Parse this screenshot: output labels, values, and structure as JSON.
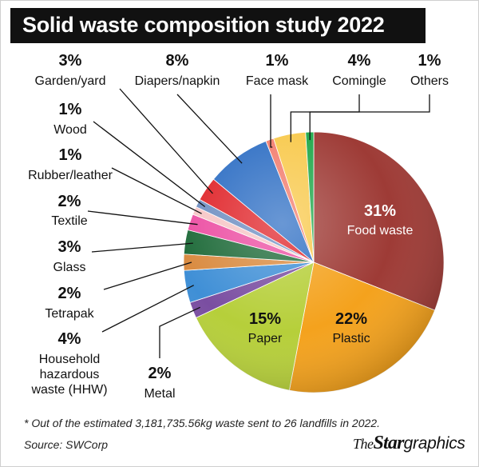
{
  "chart_data": {
    "type": "pie",
    "title": "Solid waste composition study 2022",
    "slices": [
      {
        "name": "Food waste",
        "value": 31,
        "value_label": "31%",
        "color": "#9e3b36"
      },
      {
        "name": "Plastic",
        "value": 22,
        "value_label": "22%",
        "color": "#f4a21d"
      },
      {
        "name": "Paper",
        "value": 15,
        "value_label": "15%",
        "color": "#b6cf3a"
      },
      {
        "name": "Metal",
        "value": 2,
        "value_label": "2%",
        "color": "#7a4ea1"
      },
      {
        "name": "Household hazardous waste (HHW)",
        "label_lines": [
          "Household",
          "hazardous",
          "waste (HHW)"
        ],
        "value": 4,
        "value_label": "4%",
        "color": "#3f8fd6"
      },
      {
        "name": "Tetrapak",
        "value": 2,
        "value_label": "2%",
        "color": "#d98a3f"
      },
      {
        "name": "Glass",
        "value": 3,
        "value_label": "3%",
        "color": "#1f6b3a"
      },
      {
        "name": "Textile",
        "value": 2,
        "value_label": "2%",
        "color": "#ec4fa3"
      },
      {
        "name": "Rubber/leather",
        "value": 1,
        "value_label": "1%",
        "color": "#f7c6c6"
      },
      {
        "name": "Wood",
        "value": 1,
        "value_label": "1%",
        "color": "#6f8fc2"
      },
      {
        "name": "Garden/yard",
        "value": 3,
        "value_label": "3%",
        "color": "#e0262b"
      },
      {
        "name": "Diapers/napkin",
        "value": 8,
        "value_label": "8%",
        "color": "#2f6fc4"
      },
      {
        "name": "Face mask",
        "value": 1,
        "value_label": "1%",
        "color": "#f27d6e"
      },
      {
        "name": "Comingle",
        "value": 4,
        "value_label": "4%",
        "color": "#f8c94c"
      },
      {
        "name": "Others",
        "value": 1,
        "value_label": "1%",
        "color": "#1fa84a"
      }
    ]
  },
  "footnote": "* Out of the estimated 3,181,735.56kg waste sent to 26 landfills in 2022.",
  "source": "Source: SWCorp",
  "brand": {
    "part1": "The",
    "part2": "Star",
    "part3": "graphics"
  }
}
